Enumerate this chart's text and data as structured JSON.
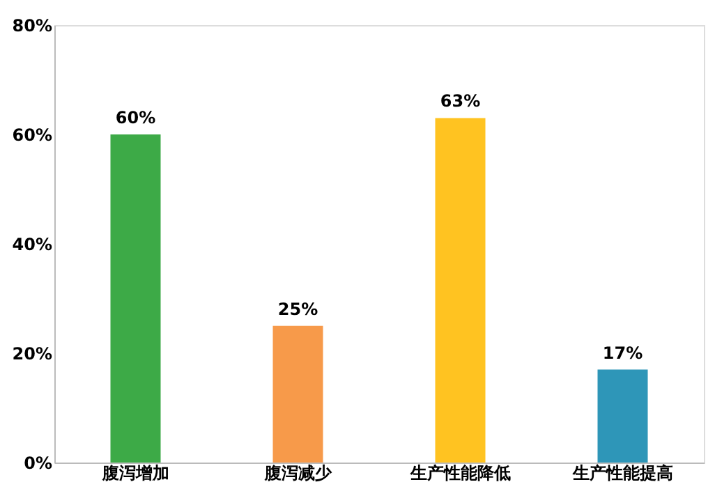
{
  "chart_data": {
    "type": "bar",
    "categories": [
      "腹泻增加",
      "腹泻减少",
      "生产性能降低",
      "生产性能提高"
    ],
    "values": [
      60,
      25,
      63,
      17
    ],
    "colors": [
      "#3daa47",
      "#f79a4a",
      "#ffc321",
      "#2e96b8"
    ],
    "value_labels": [
      "60%",
      "25%",
      "63%",
      "17%"
    ],
    "ylim": [
      0,
      80
    ],
    "yticks": [
      {
        "value": 0,
        "label": "0%"
      },
      {
        "value": 20,
        "label": "20%"
      },
      {
        "value": 40,
        "label": "40%"
      },
      {
        "value": 60,
        "label": "60%"
      },
      {
        "value": 80,
        "label": "80%"
      }
    ],
    "grid": false
  }
}
